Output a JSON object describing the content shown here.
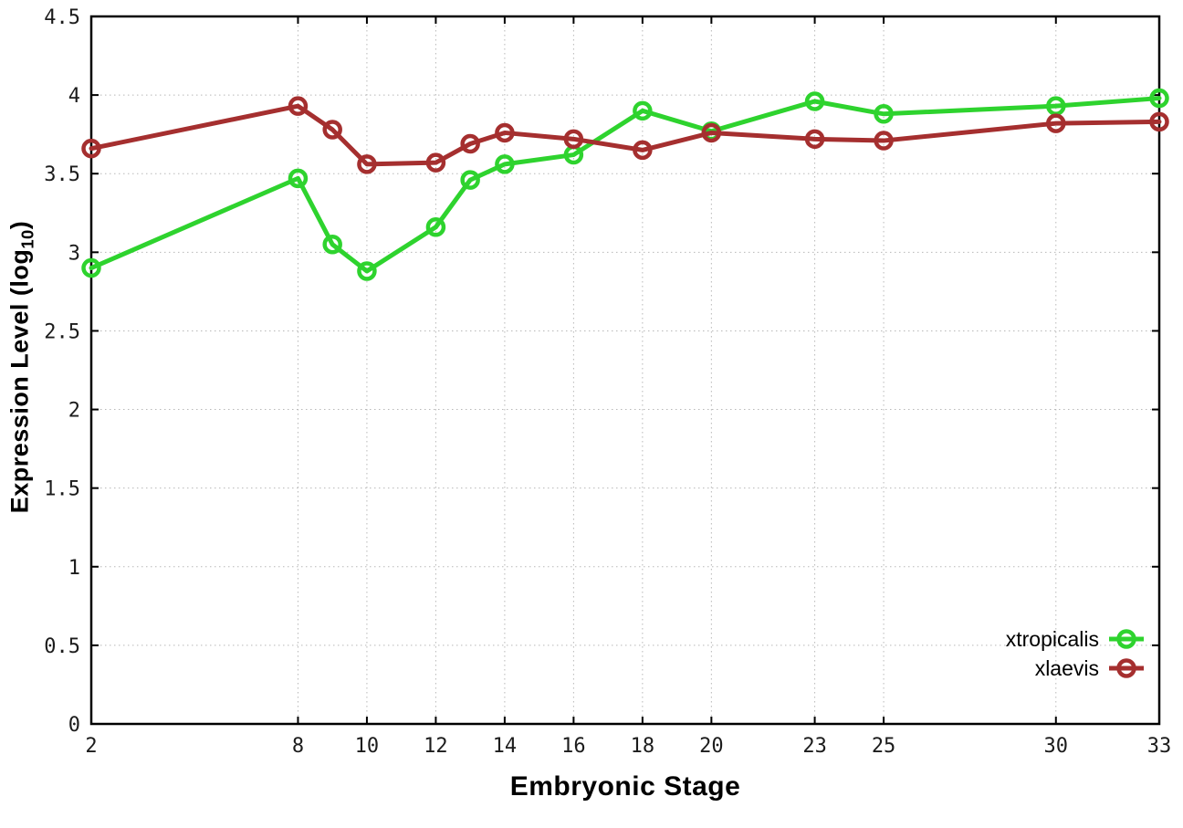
{
  "figure": {
    "background": "#ffffff",
    "ylabel_prefix": "Expression Level (log",
    "ylabel_sub": "10",
    "ylabel_suffix": ")",
    "xlabel": "Embryonic Stage"
  },
  "chart_data": {
    "type": "line",
    "title": "",
    "xlabel": "Embryonic Stage",
    "ylabel": "Expression Level (log10)",
    "x": [
      2,
      8,
      9,
      10,
      12,
      13,
      14,
      16,
      18,
      20,
      23,
      25,
      30,
      33
    ],
    "series": [
      {
        "name": "xtropicalis",
        "color": "#2ed32e",
        "values": [
          2.9,
          3.47,
          3.05,
          2.88,
          3.16,
          3.46,
          3.56,
          3.62,
          3.9,
          3.77,
          3.96,
          3.88,
          3.93,
          3.98
        ]
      },
      {
        "name": "xlaevis",
        "color": "#a52f2f",
        "values": [
          3.66,
          3.93,
          3.78,
          3.56,
          3.57,
          3.69,
          3.76,
          3.72,
          3.65,
          3.76,
          3.72,
          3.71,
          3.82,
          3.83
        ]
      }
    ],
    "xlim": [
      2,
      33
    ],
    "ylim": [
      0,
      4.5
    ],
    "x_ticks": [
      2,
      8,
      10,
      12,
      14,
      16,
      18,
      20,
      23,
      25,
      30,
      33
    ],
    "x_tick_labels": [
      "2",
      "8",
      "10",
      "12",
      "14",
      "16",
      "18",
      "20",
      "23",
      "25",
      "30",
      "33"
    ],
    "y_ticks": [
      0,
      0.5,
      1,
      1.5,
      2,
      2.5,
      3,
      3.5,
      4,
      4.5
    ],
    "y_tick_labels": [
      "0",
      "0.5",
      "1",
      "1.5",
      "2",
      "2.5",
      "3",
      "3.5",
      "4",
      "4.5"
    ],
    "grid": true,
    "grid_style": "dotted",
    "legend_position": "bottom-right-inside",
    "marker": "open-circle"
  },
  "legend": {
    "items": [
      {
        "label": "xtropicalis",
        "color": "#2ed32e"
      },
      {
        "label": "xlaevis",
        "color": "#a52f2f"
      }
    ]
  },
  "colors": {
    "axis": "#000000",
    "grid": "#b8b8b8",
    "tick_text": "#1c1c1c"
  }
}
